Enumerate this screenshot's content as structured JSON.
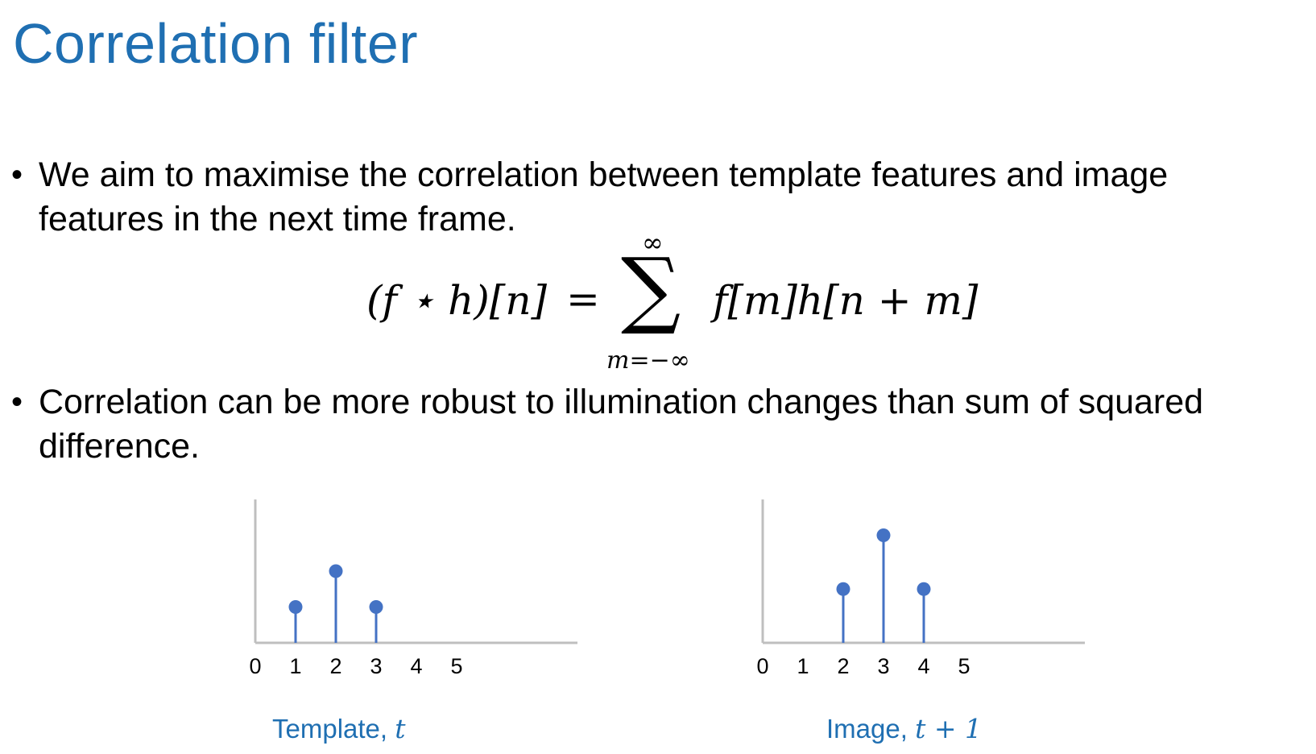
{
  "slide": {
    "title": "Correlation filter",
    "bullets": [
      "We aim to maximise the correlation between template features and image features in the next time frame.",
      "Correlation can be more robust to illumination changes than sum of squared difference."
    ],
    "bullet_symbol": "•",
    "formula": {
      "lhs": "(f ⋆ h)[n]",
      "equals": "=",
      "sum_symbol": "∑",
      "upper_limit": "∞",
      "lower_limit": "m=−∞",
      "rhs": "f[m]h[n + m]"
    },
    "colors": {
      "title": "#1f6fb2",
      "caption": "#1f6fb2",
      "stem": "#4472c4",
      "axis": "#bfbfbf"
    }
  },
  "chart_data": [
    {
      "type": "scatter",
      "style": "stem",
      "x": [
        1,
        2,
        3
      ],
      "y": [
        1,
        2,
        1
      ],
      "xticks": [
        "0",
        "1",
        "2",
        "3",
        "4",
        "5"
      ],
      "xlim": [
        0,
        8
      ],
      "ylim": [
        0,
        4
      ],
      "caption_text": "Template, ",
      "caption_math": "t"
    },
    {
      "type": "scatter",
      "style": "stem",
      "x": [
        2,
        3,
        4
      ],
      "y": [
        1.5,
        3,
        1.5
      ],
      "xticks": [
        "0",
        "1",
        "2",
        "3",
        "4",
        "5"
      ],
      "xlim": [
        0,
        8
      ],
      "ylim": [
        0,
        4
      ],
      "caption_text": "Image, ",
      "caption_math": "t + 1"
    }
  ]
}
